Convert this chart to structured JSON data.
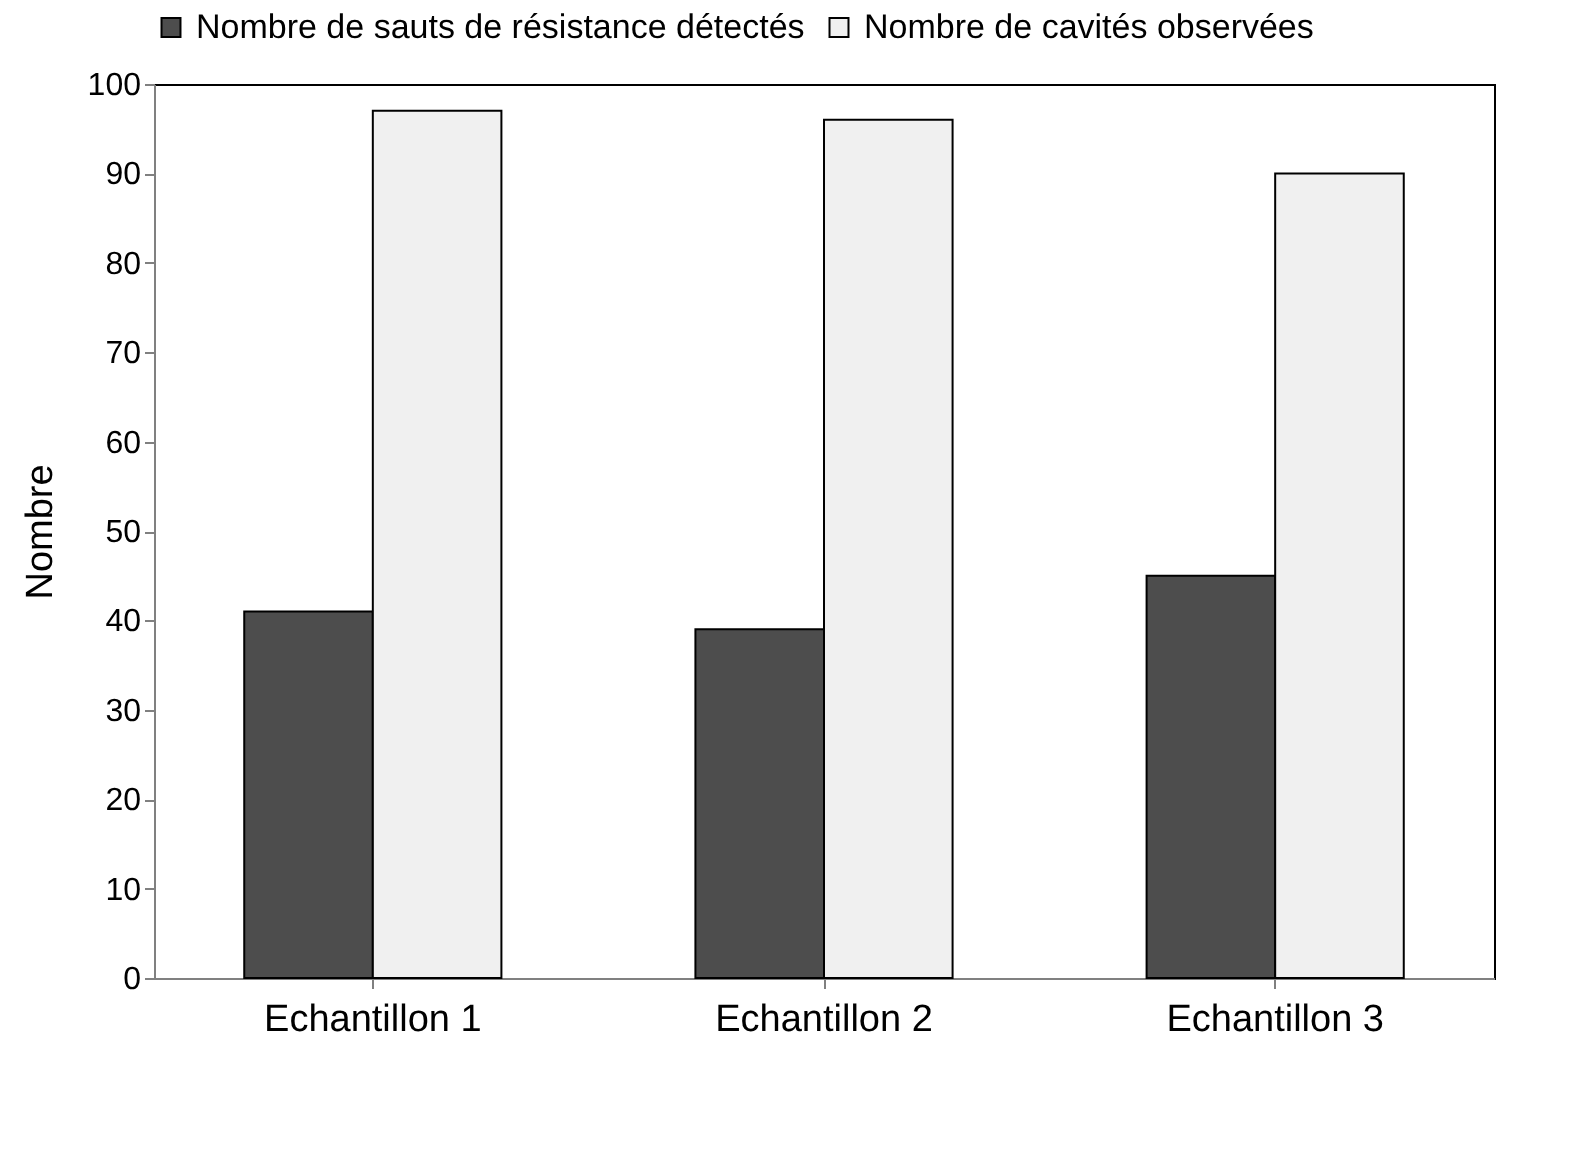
{
  "chart_data": {
    "type": "bar",
    "ylabel": "Nombre",
    "categories": [
      "Echantillon 1",
      "Echantillon 2",
      "Echantillon 3"
    ],
    "series": [
      {
        "name": "Nombre de sauts de résistance détectés",
        "color": "#4d4d4d",
        "values": [
          41,
          39,
          45
        ]
      },
      {
        "name": "Nombre de cavités observées",
        "color": "#f0f0f0",
        "values": [
          97,
          96,
          90
        ]
      }
    ],
    "ylim": [
      0,
      100
    ],
    "yticks": [
      0,
      10,
      20,
      30,
      40,
      50,
      60,
      70,
      80,
      90,
      100
    ],
    "grid": false,
    "legend": "top"
  }
}
